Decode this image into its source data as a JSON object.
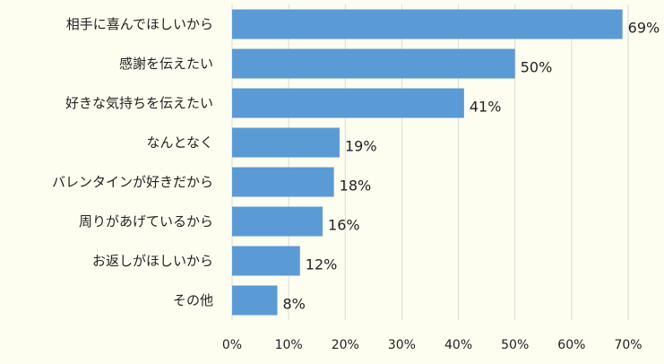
{
  "chart_data": {
    "type": "bar",
    "orientation": "horizontal",
    "categories": [
      "相手に喜んでほしいから",
      "感謝を伝えたい",
      "好きな気持ちを伝えたい",
      "なんとなく",
      "バレンタインが好きだから",
      "周りがあげているから",
      "お返しがほしいから",
      "その他"
    ],
    "values": [
      69,
      50,
      41,
      19,
      18,
      16,
      12,
      8
    ],
    "data_labels": [
      "69%",
      "50%",
      "41%",
      "19%",
      "18%",
      "16%",
      "12%",
      "8%"
    ],
    "xlim": [
      0,
      70
    ],
    "x_ticks": [
      0,
      10,
      20,
      30,
      40,
      50,
      60,
      70
    ],
    "x_tick_labels": [
      "0%",
      "10%",
      "20%",
      "30%",
      "40%",
      "50%",
      "60%",
      "70%"
    ],
    "grid": "vertical",
    "bar_color": "#5b9bd5",
    "background_color": "#fefef0",
    "grid_color": "#d9d9d9",
    "title": "",
    "xlabel": "",
    "ylabel": ""
  }
}
